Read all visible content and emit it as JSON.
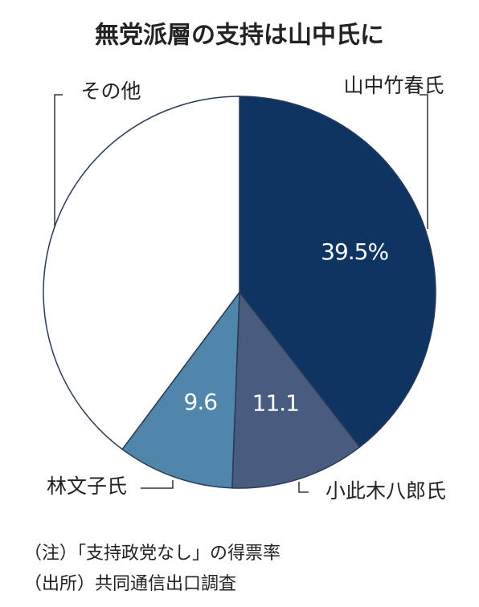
{
  "chart_data": {
    "type": "pie",
    "title": "無党派層の支持は山中氏に",
    "categories": [
      "山中竹春氏",
      "小此木八郎氏",
      "林文子氏",
      "その他"
    ],
    "values": [
      39.5,
      11.1,
      9.6,
      39.8
    ],
    "value_labels": [
      "39.5%",
      "11.1",
      "9.6",
      null
    ],
    "colors": [
      "#0e3461",
      "#475c7e",
      "#4f86aa",
      "#ffffff"
    ],
    "notes": [
      "（注）「支持政党なし」の得票率",
      "（出所）共同通信出口調査"
    ]
  }
}
